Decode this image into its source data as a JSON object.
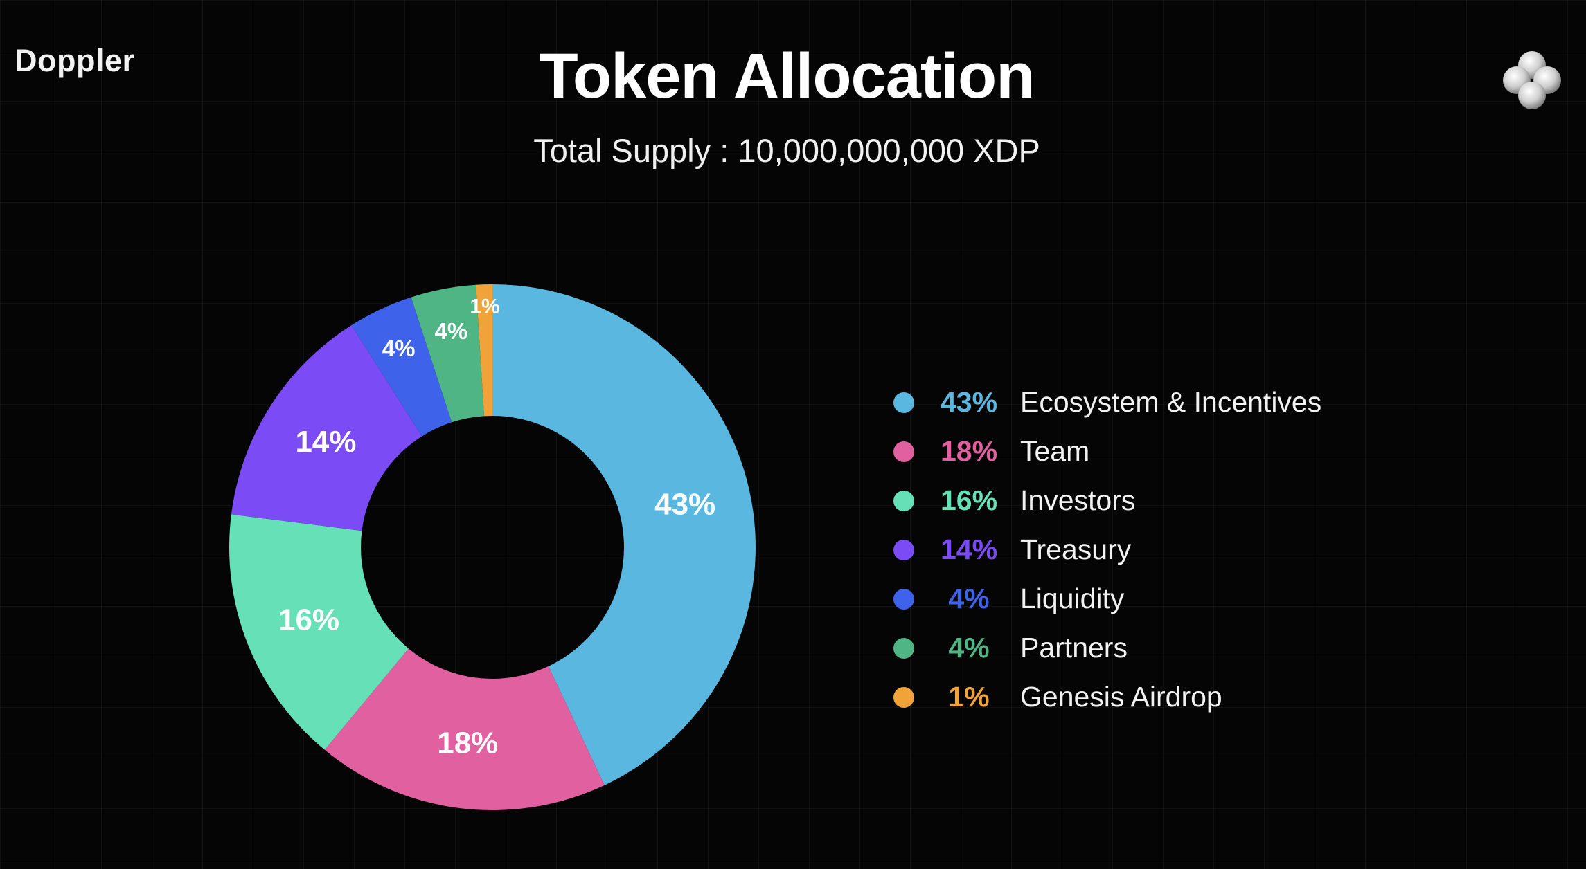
{
  "header": {
    "brand": "Doppler",
    "title": "Token Allocation",
    "subtitle": "Total Supply : 10,000,000,000 XDP",
    "logo_icon": "four-spheres-logo-icon"
  },
  "chart_data": {
    "type": "pie",
    "style": "donut",
    "categories": [
      "Ecosystem & Incentives",
      "Team",
      "Investors",
      "Treasury",
      "Liquidity",
      "Partners",
      "Genesis Airdrop"
    ],
    "values": [
      43,
      18,
      16,
      14,
      4,
      4,
      1
    ],
    "value_labels": [
      "43%",
      "18%",
      "16%",
      "14%",
      "4%",
      "4%",
      "1%"
    ],
    "colors": [
      "#5ab7e0",
      "#e060a0",
      "#66e0b6",
      "#7b4cf5",
      "#3f62ea",
      "#4fb584",
      "#efa338"
    ],
    "legend_placement": "right",
    "grid": false
  }
}
